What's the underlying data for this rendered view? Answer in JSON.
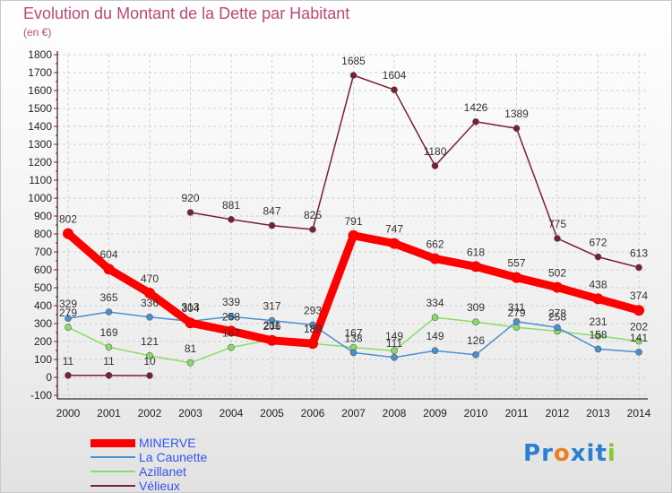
{
  "title": "Evolution du Montant de la Dette par Habitant",
  "unit": "(en €)",
  "logo_text": "Proxiti",
  "chart_data": {
    "type": "line",
    "x": [
      "2000",
      "2001",
      "2002",
      "2003",
      "2004",
      "2005",
      "2006",
      "2007",
      "2008",
      "2009",
      "2010",
      "2011",
      "2012",
      "2013",
      "2014"
    ],
    "ylim": [
      -100,
      1800
    ],
    "yticks": [
      -100,
      0,
      100,
      200,
      300,
      400,
      500,
      600,
      700,
      800,
      900,
      1000,
      1100,
      1200,
      1300,
      1400,
      1500,
      1600,
      1700,
      1800
    ],
    "grid": true,
    "legend_position": "bottom-left",
    "series": [
      {
        "name": "MINERVE",
        "color": "#ff0000",
        "values": [
          802,
          604,
          470,
          304,
          258,
          206,
          189,
          791,
          747,
          662,
          618,
          557,
          502,
          438,
          374
        ],
        "labels": [
          "802",
          "604",
          "470",
          "304",
          "258",
          "206",
          "189",
          "791",
          "747",
          "662",
          "618",
          "557",
          "502",
          "438",
          "374"
        ]
      },
      {
        "name": "La Caunette",
        "color": "#4a90d0",
        "values": [
          329,
          365,
          336,
          313,
          339,
          317,
          293,
          138,
          111,
          149,
          126,
          311,
          278,
          158,
          141
        ],
        "labels": [
          "329",
          "365",
          "336",
          "313",
          "339",
          "317",
          "293",
          "138",
          "111",
          "149",
          "126",
          "311",
          "278",
          "158",
          "141"
        ]
      },
      {
        "name": "Azillanet",
        "color": "#88dd66",
        "values": [
          279,
          169,
          121,
          81,
          167,
          211,
          189,
          167,
          149,
          334,
          309,
          279,
          258,
          231,
          202
        ],
        "labels": [
          "279",
          "169",
          "121",
          "81",
          "167",
          "211",
          "189",
          "167",
          "149",
          "334",
          "309",
          "279",
          "258",
          "231",
          "202"
        ]
      },
      {
        "name": "Vélieux",
        "segments": [
          [
            0,
            2
          ],
          [
            3,
            14
          ]
        ],
        "color": "#7a2030",
        "values": [
          11,
          11,
          10,
          920,
          881,
          847,
          825,
          1685,
          1604,
          1180,
          1426,
          1389,
          775,
          672,
          613
        ],
        "labels": [
          "11",
          "11",
          "10",
          "920",
          "881",
          "847",
          "825",
          "1685",
          "1604",
          "1180",
          "1426",
          "1389",
          "775",
          "672",
          "613"
        ]
      }
    ]
  },
  "colors": {
    "title": "#c04878",
    "axis": "#000000",
    "grid": "#d0d0d0",
    "tick_mark": "#cc0033"
  }
}
